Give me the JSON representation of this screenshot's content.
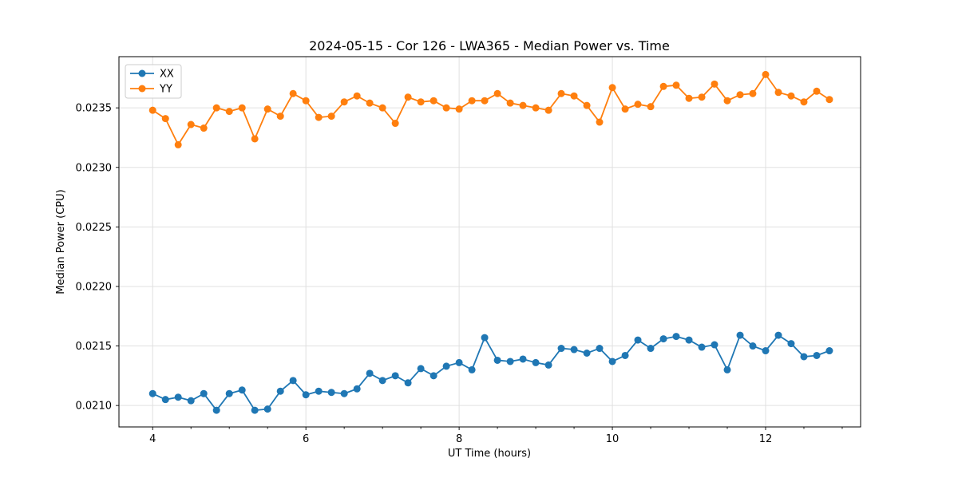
{
  "window": {
    "background": "#ffffff"
  },
  "chart_data": {
    "type": "line",
    "title": "2024-05-15 - Cor 126 - LWA365 - Median Power vs. Time",
    "xlabel": "UT Time (hours)",
    "ylabel": "Median Power (CPU)",
    "grid": true,
    "legend_position": "upper left",
    "xlim": [
      3.56,
      13.24
    ],
    "ylim": [
      0.02082,
      0.02393
    ],
    "xticks": [
      4,
      6,
      8,
      10,
      12
    ],
    "xtick_labels": [
      "4",
      "6",
      "8",
      "10",
      "12"
    ],
    "xticks_minor": [
      4.5,
      5,
      5.5,
      6.5,
      7,
      7.5,
      8.5,
      9,
      9.5,
      10.5,
      11,
      11.5,
      12.5,
      13
    ],
    "yticks": [
      0.021,
      0.0215,
      0.022,
      0.0225,
      0.023,
      0.0235
    ],
    "ytick_labels": [
      "0.0210",
      "0.0215",
      "0.0220",
      "0.0225",
      "0.0230",
      "0.0235"
    ],
    "x": [
      4.0,
      4.167,
      4.333,
      4.5,
      4.667,
      4.833,
      5.0,
      5.167,
      5.333,
      5.5,
      5.667,
      5.833,
      6.0,
      6.167,
      6.333,
      6.5,
      6.667,
      6.833,
      7.0,
      7.167,
      7.333,
      7.5,
      7.667,
      7.833,
      8.0,
      8.167,
      8.333,
      8.5,
      8.667,
      8.833,
      9.0,
      9.167,
      9.333,
      9.5,
      9.667,
      9.833,
      10.0,
      10.167,
      10.333,
      10.5,
      10.667,
      10.833,
      11.0,
      11.167,
      11.333,
      11.5,
      11.667,
      11.833,
      12.0,
      12.167,
      12.333,
      12.5,
      12.667,
      12.833
    ],
    "series": [
      {
        "name": "XX",
        "color": "#1f77b4",
        "values": [
          0.0211,
          0.02105,
          0.02107,
          0.02104,
          0.0211,
          0.02096,
          0.0211,
          0.02113,
          0.02096,
          0.02097,
          0.02112,
          0.02121,
          0.02109,
          0.02112,
          0.02111,
          0.0211,
          0.02114,
          0.02127,
          0.02121,
          0.02125,
          0.02119,
          0.02131,
          0.02125,
          0.02133,
          0.02136,
          0.0213,
          0.02157,
          0.02138,
          0.02137,
          0.02139,
          0.02136,
          0.02134,
          0.02148,
          0.02147,
          0.02144,
          0.02148,
          0.02137,
          0.02142,
          0.02155,
          0.02148,
          0.02156,
          0.02158,
          0.02155,
          0.02149,
          0.02151,
          0.0213,
          0.02159,
          0.0215,
          0.02146,
          0.02159,
          0.02152,
          0.02141,
          0.02142,
          0.02146
        ]
      },
      {
        "name": "YY",
        "color": "#ff7f0e",
        "values": [
          0.02348,
          0.02341,
          0.02319,
          0.02336,
          0.02333,
          0.0235,
          0.02347,
          0.0235,
          0.02324,
          0.02349,
          0.02343,
          0.02362,
          0.02356,
          0.02342,
          0.02343,
          0.02355,
          0.0236,
          0.02354,
          0.0235,
          0.02337,
          0.02359,
          0.02355,
          0.02356,
          0.0235,
          0.02349,
          0.02356,
          0.02356,
          0.02362,
          0.02354,
          0.02352,
          0.0235,
          0.02348,
          0.02362,
          0.0236,
          0.02352,
          0.02338,
          0.02367,
          0.02349,
          0.02353,
          0.02351,
          0.02368,
          0.02369,
          0.02358,
          0.02359,
          0.0237,
          0.02356,
          0.02361,
          0.02362,
          0.02378,
          0.02363,
          0.0236,
          0.02355,
          0.02364,
          0.02357
        ]
      }
    ]
  }
}
